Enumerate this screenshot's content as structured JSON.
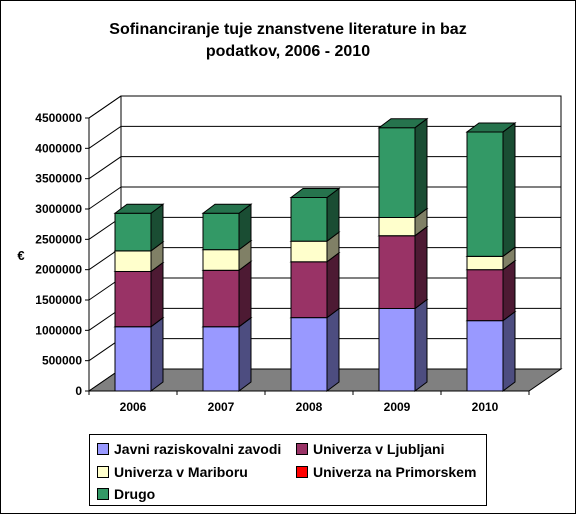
{
  "chart_data": {
    "type": "bar",
    "stacked": true,
    "three_d": true,
    "title": [
      "Sofinanciranje tuje znanstvene literature in baz",
      "podatkov, 2006 - 2010"
    ],
    "xlabel": "",
    "ylabel": "€",
    "ylim": [
      0,
      4500000
    ],
    "y_ticks": [
      0,
      500000,
      1000000,
      1500000,
      2000000,
      2500000,
      3000000,
      3500000,
      4000000,
      4500000
    ],
    "y_tick_labels": [
      "0",
      "500000",
      "1000000",
      "1500000",
      "2000000",
      "2500000",
      "3000000",
      "3500000",
      "4000000",
      "4500000"
    ],
    "grid": "horizontal",
    "legend_position": "bottom",
    "categories": [
      "2006",
      "2007",
      "2008",
      "2009",
      "2010"
    ],
    "series": [
      {
        "name": "Javni raziskovalni zavodi",
        "color": "#9999ff",
        "values": [
          1060000,
          1060000,
          1210000,
          1360000,
          1160000
        ]
      },
      {
        "name": "Univerza v Ljubljani",
        "color": "#993366",
        "values": [
          910000,
          930000,
          920000,
          1200000,
          840000
        ]
      },
      {
        "name": "Univerza v Mariboru",
        "color": "#ffffcc",
        "values": [
          340000,
          340000,
          340000,
          300000,
          220000
        ]
      },
      {
        "name": "Univerza na Primorskem",
        "color": "#ff0000",
        "values": [
          0,
          0,
          0,
          0,
          0
        ]
      },
      {
        "name": "Drugo",
        "color": "#339966",
        "values": [
          620000,
          600000,
          720000,
          1480000,
          2050000
        ]
      }
    ]
  }
}
